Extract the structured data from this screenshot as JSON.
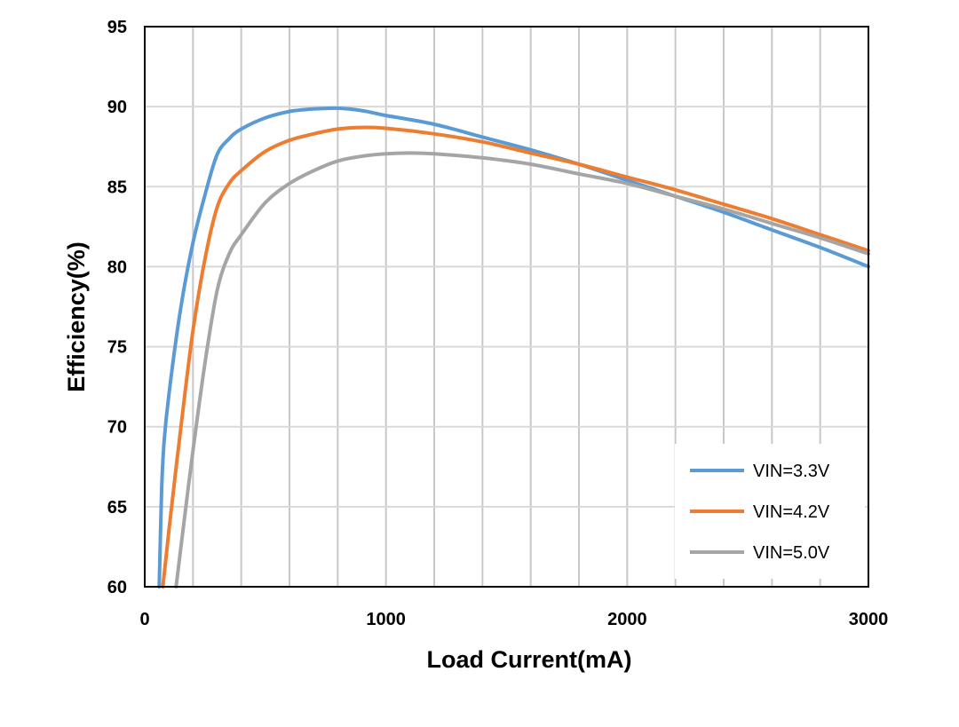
{
  "chart_data": {
    "type": "line",
    "title": "",
    "xlabel": "Load Current(mA)",
    "ylabel": "Efficiency(%)",
    "xlim": [
      0,
      3000
    ],
    "ylim": [
      60,
      95
    ],
    "x_ticks": [
      "0",
      "1000",
      "2000",
      "3000"
    ],
    "y_ticks": [
      "60",
      "65",
      "70",
      "75",
      "80",
      "85",
      "90",
      "95"
    ],
    "grid": true,
    "legend_position": "bottom-right",
    "series": [
      {
        "name": "VIN=3.3V",
        "color": "#5B9BD5",
        "points": [
          [
            60,
            60
          ],
          [
            70,
            66
          ],
          [
            80,
            69
          ],
          [
            100,
            72
          ],
          [
            150,
            77.5
          ],
          [
            200,
            81.5
          ],
          [
            250,
            84.5
          ],
          [
            300,
            87
          ],
          [
            350,
            88
          ],
          [
            400,
            88.6
          ],
          [
            500,
            89.3
          ],
          [
            600,
            89.7
          ],
          [
            700,
            89.85
          ],
          [
            800,
            89.9
          ],
          [
            900,
            89.75
          ],
          [
            1000,
            89.45
          ],
          [
            1200,
            88.9
          ],
          [
            1400,
            88.1
          ],
          [
            1600,
            87.3
          ],
          [
            1800,
            86.4
          ],
          [
            2000,
            85.4
          ],
          [
            2200,
            84.4
          ],
          [
            2400,
            83.4
          ],
          [
            2600,
            82.3
          ],
          [
            2800,
            81.2
          ],
          [
            3000,
            80
          ]
        ]
      },
      {
        "name": "VIN=4.2V",
        "color": "#ED7D31",
        "points": [
          [
            75,
            60
          ],
          [
            100,
            63.5
          ],
          [
            150,
            70
          ],
          [
            200,
            76
          ],
          [
            250,
            80.5
          ],
          [
            300,
            83.7
          ],
          [
            350,
            85.2
          ],
          [
            400,
            86
          ],
          [
            500,
            87.2
          ],
          [
            600,
            87.9
          ],
          [
            700,
            88.3
          ],
          [
            800,
            88.6
          ],
          [
            900,
            88.7
          ],
          [
            1000,
            88.65
          ],
          [
            1200,
            88.3
          ],
          [
            1400,
            87.8
          ],
          [
            1600,
            87.1
          ],
          [
            1800,
            86.4
          ],
          [
            2000,
            85.6
          ],
          [
            2200,
            84.8
          ],
          [
            2400,
            83.9
          ],
          [
            2600,
            83
          ],
          [
            2800,
            82
          ],
          [
            3000,
            81
          ]
        ]
      },
      {
        "name": "VIN=5.0V",
        "color": "#A5A5A5",
        "points": [
          [
            130,
            60
          ],
          [
            150,
            62.5
          ],
          [
            200,
            68.5
          ],
          [
            250,
            74
          ],
          [
            300,
            78.5
          ],
          [
            350,
            80.8
          ],
          [
            400,
            82
          ],
          [
            500,
            84
          ],
          [
            600,
            85.2
          ],
          [
            700,
            86
          ],
          [
            800,
            86.6
          ],
          [
            900,
            86.9
          ],
          [
            1000,
            87.05
          ],
          [
            1100,
            87.1
          ],
          [
            1200,
            87.05
          ],
          [
            1400,
            86.8
          ],
          [
            1600,
            86.4
          ],
          [
            1800,
            85.8
          ],
          [
            2000,
            85.2
          ],
          [
            2200,
            84.4
          ],
          [
            2400,
            83.6
          ],
          [
            2600,
            82.7
          ],
          [
            2800,
            81.8
          ],
          [
            3000,
            80.8
          ]
        ]
      }
    ]
  }
}
